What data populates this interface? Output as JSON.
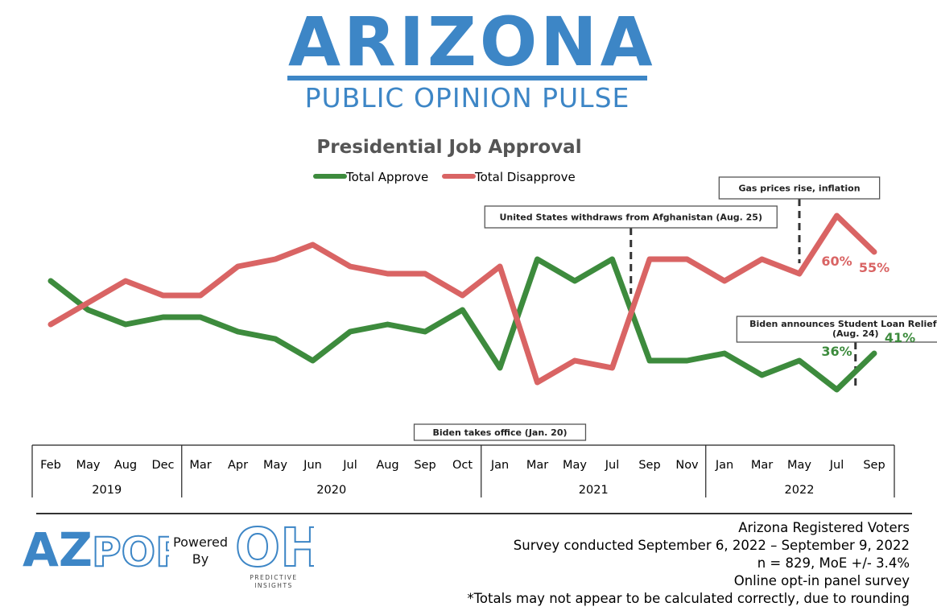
{
  "header": {
    "logo_word": "ARIZONA",
    "logo_sub": "PUBLIC OPINION PULSE"
  },
  "colors": {
    "approve": "#3d8b3d",
    "disapprove": "#d96464",
    "brand_blue": "#3d86c6",
    "annotation_border": "#555555"
  },
  "chart_data": {
    "type": "line",
    "title": "Presidential Job Approval",
    "legend_position": "top-center",
    "categories": [
      "Feb",
      "May",
      "Aug",
      "Dec",
      "Mar",
      "Apr",
      "May",
      "Jun",
      "Jul",
      "Aug",
      "Sep",
      "Oct",
      "Jan",
      "Mar",
      "May",
      "Jul",
      "Sep",
      "Nov",
      "Jan",
      "Mar",
      "May",
      "Jul",
      "Sep"
    ],
    "year_groups": [
      {
        "label": "2019",
        "count": 4
      },
      {
        "label": "2020",
        "count": 8
      },
      {
        "label": "2021",
        "count": 6
      },
      {
        "label": "2022",
        "count": 5
      }
    ],
    "series": [
      {
        "name": "Total Approve",
        "color": "#3d8b3d",
        "values": [
          51,
          47,
          45,
          46,
          46,
          44,
          43,
          40,
          44,
          45,
          44,
          47,
          39,
          54,
          51,
          54,
          40,
          40,
          41,
          38,
          40,
          36,
          41
        ]
      },
      {
        "name": "Total Disapprove",
        "color": "#d96464",
        "values": [
          45,
          48,
          51,
          49,
          49,
          53,
          54,
          56,
          53,
          52,
          52,
          49,
          53,
          37,
          40,
          39,
          54,
          54,
          51,
          54,
          52,
          60,
          55
        ]
      }
    ],
    "data_labels": [
      {
        "series": 0,
        "index": 21,
        "text": "36%"
      },
      {
        "series": 0,
        "index": 22,
        "text": "41%"
      },
      {
        "series": 1,
        "index": 21,
        "text": "60%"
      },
      {
        "series": 1,
        "index": 22,
        "text": "55%"
      }
    ],
    "annotations": [
      {
        "text": "Biden takes office (Jan. 20)",
        "at": 12
      },
      {
        "text": "United States withdraws from Afghanistan (Aug. 25)",
        "at": 15.5
      },
      {
        "text": "Gas prices rise, inflation",
        "at": 20
      },
      {
        "text": "Biden announces Student Loan Relief Plan",
        "text2": "(Aug. 24)",
        "at": 21.5
      }
    ],
    "ylim": [
      32,
      62
    ],
    "grid": false
  },
  "footer": {
    "azpop_az": "AZ",
    "azpop_pop": "POP",
    "powered_line1": "Powered",
    "powered_line2": "By",
    "oh_text": "OH",
    "oh_sub1": "PREDICTIVE",
    "oh_sub2": "INSIGHTS",
    "notes": [
      "Arizona Registered Voters",
      "Survey conducted September 6, 2022 – September 9, 2022",
      "n = 829, MoE +/- 3.4%",
      "Online opt-in panel survey",
      "*Totals may not appear to be calculated correctly, due to rounding"
    ]
  }
}
